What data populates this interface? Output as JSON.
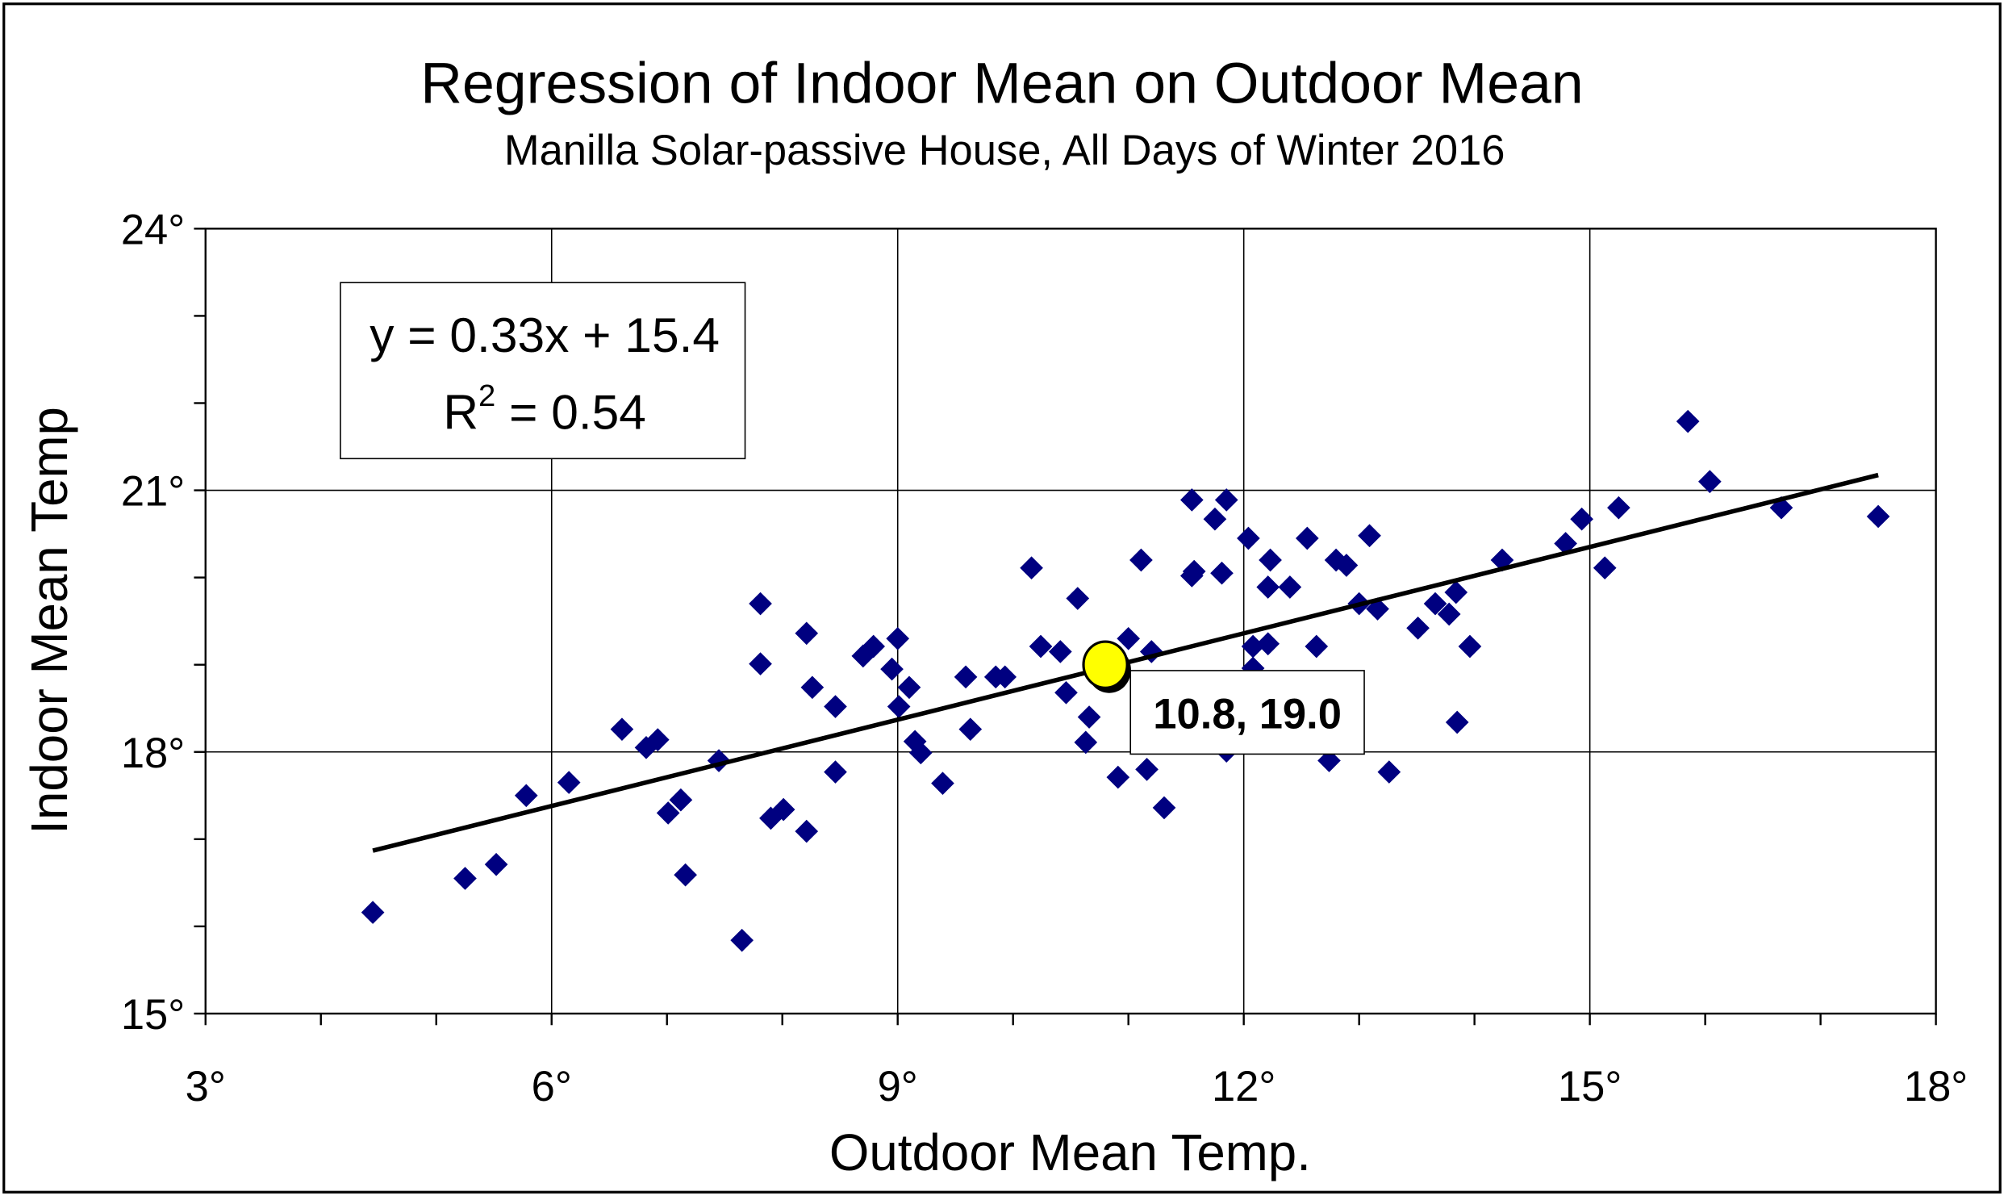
{
  "chart_data": {
    "type": "scatter",
    "title": "Regression of Indoor Mean on Outdoor Mean",
    "subtitle": "Manilla Solar-passive House, All Days of Winter 2016",
    "xlabel": "Outdoor Mean Temp.",
    "ylabel": "Indoor Mean Temp",
    "xlim": [
      3,
      18
    ],
    "ylim": [
      15,
      24
    ],
    "x_ticks": [
      "3°",
      "6°",
      "9°",
      "12°",
      "15°",
      "18°"
    ],
    "y_ticks": [
      "15°",
      "18°",
      "21°",
      "24°"
    ],
    "grid": true,
    "marker_color": "#000080",
    "points": [
      [
        4.45,
        16.16
      ],
      [
        5.25,
        16.55
      ],
      [
        5.52,
        16.71
      ],
      [
        5.78,
        17.5
      ],
      [
        6.15,
        17.65
      ],
      [
        6.61,
        18.26
      ],
      [
        6.82,
        18.05
      ],
      [
        6.92,
        18.14
      ],
      [
        7.01,
        17.3
      ],
      [
        7.12,
        17.45
      ],
      [
        7.16,
        16.59
      ],
      [
        7.45,
        17.9
      ],
      [
        7.65,
        15.84
      ],
      [
        7.81,
        19.7
      ],
      [
        7.81,
        19.01
      ],
      [
        7.9,
        17.24
      ],
      [
        8.01,
        17.34
      ],
      [
        8.21,
        19.36
      ],
      [
        8.21,
        17.09
      ],
      [
        8.26,
        18.74
      ],
      [
        8.46,
        18.52
      ],
      [
        8.46,
        17.77
      ],
      [
        8.7,
        19.1
      ],
      [
        8.79,
        19.21
      ],
      [
        8.95,
        18.95
      ],
      [
        9.0,
        19.3
      ],
      [
        9.01,
        18.52
      ],
      [
        9.1,
        18.74
      ],
      [
        9.15,
        18.12
      ],
      [
        9.2,
        17.99
      ],
      [
        9.39,
        17.64
      ],
      [
        9.59,
        18.86
      ],
      [
        9.63,
        18.26
      ],
      [
        9.85,
        18.86
      ],
      [
        9.93,
        18.86
      ],
      [
        10.16,
        20.11
      ],
      [
        10.24,
        19.21
      ],
      [
        10.41,
        19.15
      ],
      [
        10.46,
        18.68
      ],
      [
        10.56,
        19.76
      ],
      [
        10.63,
        18.11
      ],
      [
        10.66,
        18.4
      ],
      [
        10.91,
        17.71
      ],
      [
        11.0,
        19.3
      ],
      [
        11.11,
        20.2
      ],
      [
        11.16,
        17.8
      ],
      [
        11.2,
        19.15
      ],
      [
        11.31,
        17.36
      ],
      [
        11.55,
        20.89
      ],
      [
        11.55,
        20.02
      ],
      [
        11.57,
        20.07
      ],
      [
        11.75,
        20.67
      ],
      [
        11.81,
        20.05
      ],
      [
        11.85,
        20.89
      ],
      [
        11.85,
        18.01
      ],
      [
        12.04,
        20.45
      ],
      [
        12.08,
        19.21
      ],
      [
        12.08,
        18.96
      ],
      [
        12.21,
        19.24
      ],
      [
        12.21,
        19.89
      ],
      [
        12.23,
        20.2
      ],
      [
        12.4,
        19.89
      ],
      [
        12.55,
        20.45
      ],
      [
        12.63,
        19.21
      ],
      [
        12.74,
        17.9
      ],
      [
        12.8,
        20.2
      ],
      [
        12.89,
        20.14
      ],
      [
        13.0,
        19.7
      ],
      [
        13.09,
        20.48
      ],
      [
        13.16,
        19.64
      ],
      [
        13.26,
        17.77
      ],
      [
        13.51,
        19.42
      ],
      [
        13.66,
        19.7
      ],
      [
        13.78,
        19.58
      ],
      [
        13.84,
        19.83
      ],
      [
        13.85,
        18.34
      ],
      [
        13.96,
        19.21
      ],
      [
        14.24,
        20.2
      ],
      [
        14.79,
        20.39
      ],
      [
        14.93,
        20.67
      ],
      [
        15.13,
        20.11
      ],
      [
        15.25,
        20.8
      ],
      [
        15.85,
        21.79
      ],
      [
        16.04,
        21.1
      ],
      [
        16.66,
        20.8
      ],
      [
        17.5,
        20.7
      ]
    ],
    "trendline": {
      "slope": 0.33,
      "intercept": 15.4,
      "x_range": [
        4.45,
        17.5
      ],
      "color": "#000000"
    },
    "equation": {
      "line1": "y = 0.33x + 15.4",
      "r2_prefix": "R",
      "r2_sup": "2",
      "r2_value": " = 0.54"
    },
    "highlight": {
      "x": 10.8,
      "y": 19.0,
      "label": "10.8, 19.0",
      "color": "#FFFF00"
    }
  }
}
